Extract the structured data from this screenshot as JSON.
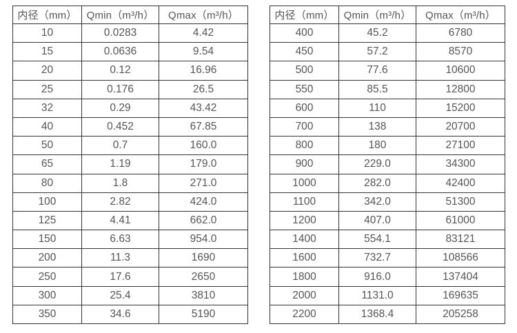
{
  "colors": {
    "background": "#ffffff",
    "border": "#333333",
    "text": "#555555"
  },
  "tables": [
    {
      "name": "flow-table-small-diameters",
      "headers": [
        "内径（mm）",
        "Qmin（m³/h）",
        "Qmax（m³/h）"
      ],
      "rows": [
        [
          "10",
          "0.0283",
          "4.42"
        ],
        [
          "15",
          "0.0636",
          "9.54"
        ],
        [
          "20",
          "0.12",
          "16.96"
        ],
        [
          "25",
          "0.176",
          "26.5"
        ],
        [
          "32",
          "0.29",
          "43.42"
        ],
        [
          "40",
          "0.452",
          "67.85"
        ],
        [
          "50",
          "0.7",
          "160.0"
        ],
        [
          "65",
          "1.19",
          "179.0"
        ],
        [
          "80",
          "1.8",
          "271.0"
        ],
        [
          "100",
          "2.82",
          "424.0"
        ],
        [
          "125",
          "4.41",
          "662.0"
        ],
        [
          "150",
          "6.63",
          "954.0"
        ],
        [
          "200",
          "11.3",
          "1690"
        ],
        [
          "250",
          "17.6",
          "2650"
        ],
        [
          "300",
          "25.4",
          "3810"
        ],
        [
          "350",
          "34.6",
          "5190"
        ]
      ]
    },
    {
      "name": "flow-table-large-diameters",
      "headers": [
        "内径（mm）",
        "Qmin（m³/h）",
        "Qmax（m³/h）"
      ],
      "rows": [
        [
          "400",
          "45.2",
          "6780"
        ],
        [
          "450",
          "57.2",
          "8570"
        ],
        [
          "500",
          "77.6",
          "10600"
        ],
        [
          "550",
          "85.5",
          "12800"
        ],
        [
          "600",
          "110",
          "15200"
        ],
        [
          "700",
          "138",
          "20700"
        ],
        [
          "800",
          "180",
          "27100"
        ],
        [
          "900",
          "229.0",
          "34300"
        ],
        [
          "1000",
          "282.0",
          "42400"
        ],
        [
          "1100",
          "342.0",
          "51300"
        ],
        [
          "1200",
          "407.0",
          "61000"
        ],
        [
          "1400",
          "554.1",
          "83121"
        ],
        [
          "1600",
          "732.7",
          "108566"
        ],
        [
          "1800",
          "916.0",
          "137404"
        ],
        [
          "2000",
          "1131.0",
          "169635"
        ],
        [
          "2200",
          "1368.4",
          "205258"
        ]
      ]
    }
  ]
}
